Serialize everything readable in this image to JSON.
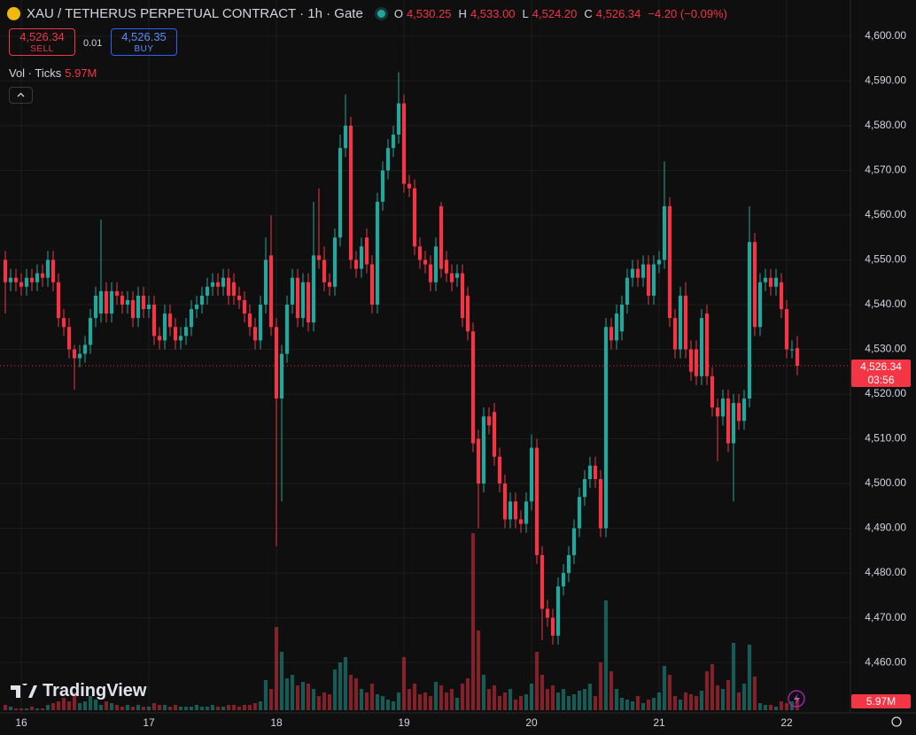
{
  "header": {
    "title": "XAU / TETHERUS PERPETUAL CONTRACT · 1h · Gate",
    "open_label": "O",
    "open": "4,530.25",
    "high_label": "H",
    "high": "4,533.00",
    "low_label": "L",
    "low": "4,524.20",
    "close_label": "C",
    "close": "4,526.34",
    "change": "−4.20 (−0.09%)"
  },
  "trade_panel": {
    "sell_price": "4,526.34",
    "sell": "SELL",
    "spread": "0.01",
    "buy_price": "4,526.35",
    "buy": "BUY"
  },
  "volume_legend": {
    "label": "Vol · Ticks",
    "value": "5.97M"
  },
  "brand": "TradingView",
  "chart_data": {
    "type": "candlestick",
    "up_color": "#26a69a",
    "down_color": "#f23645",
    "open": [
      4550,
      4545,
      4546,
      4545,
      4544,
      4546,
      4545,
      4547,
      4546,
      4550,
      4545,
      4537,
      4535,
      4530,
      4528,
      4529,
      4531,
      4537,
      4538,
      4543,
      4538,
      4543,
      4542,
      4540,
      4541,
      4537,
      4542,
      4539,
      4540,
      4533,
      4532,
      4538,
      4535,
      4532,
      4533,
      4535,
      4539,
      4540,
      4542,
      4544,
      4545,
      4544,
      4546,
      4545,
      4542,
      4541,
      4538,
      4535,
      4532,
      4540,
      4551,
      4535,
      4519,
      4529,
      4540,
      4546,
      4537,
      4545,
      4536,
      4551,
      4550,
      4545,
      4544,
      4555,
      4575,
      4580,
      4550,
      4548,
      4555,
      4549,
      4540,
      4563,
      4570,
      4575,
      4578,
      4585,
      4567,
      4566,
      4553,
      4550,
      4549,
      4545,
      4562,
      4550,
      4547,
      4546,
      4547,
      4542,
      4534,
      4510,
      4500,
      4515,
      4516,
      4506,
      4500,
      4492,
      4496,
      4492,
      4491,
      4496,
      4508,
      4484,
      4472,
      4470,
      4466,
      4477,
      4480,
      4484,
      4490,
      4497,
      4501,
      4504,
      4501,
      4490,
      4535,
      4532,
      4534,
      4540,
      4546,
      4548,
      4546,
      4549,
      4542,
      4549,
      4550,
      4562,
      4537,
      4530,
      4542,
      4530,
      4530,
      4524,
      4538,
      4524,
      4517,
      4515,
      4519,
      4509,
      4518,
      4514,
      4519,
      4554,
      4535,
      4545,
      4546,
      4544,
      4545,
      4539,
      4530,
      4530.25
    ],
    "high": [
      4552,
      4548,
      4548,
      4547,
      4548,
      4548,
      4549,
      4549,
      4552,
      4552,
      4547,
      4539,
      4537,
      4531,
      4531,
      4533,
      4539,
      4544,
      4559,
      4545,
      4545,
      4545,
      4543,
      4543,
      4543,
      4544,
      4544,
      4542,
      4542,
      4535,
      4540,
      4540,
      4537,
      4535,
      4537,
      4541,
      4542,
      4544,
      4546,
      4547,
      4547,
      4548,
      4548,
      4547,
      4544,
      4543,
      4540,
      4537,
      4542,
      4555,
      4560,
      4537,
      4531,
      4542,
      4548,
      4548,
      4547,
      4547,
      4563,
      4566,
      4553,
      4547,
      4557,
      4578,
      4587,
      4582,
      4552,
      4555,
      4557,
      4551,
      4565,
      4572,
      4577,
      4580,
      4592,
      4587,
      4569,
      4568,
      4555,
      4552,
      4551,
      4555,
      4563,
      4552,
      4549,
      4549,
      4549,
      4544,
      4536,
      4512,
      4517,
      4517,
      4518,
      4508,
      4502,
      4498,
      4498,
      4494,
      4498,
      4511,
      4510,
      4486,
      4474,
      4472,
      4479,
      4482,
      4486,
      4492,
      4499,
      4503,
      4506,
      4506,
      4503,
      4537,
      4537,
      4540,
      4542,
      4548,
      4550,
      4550,
      4551,
      4551,
      4551,
      4552,
      4572,
      4564,
      4539,
      4544,
      4545,
      4532,
      4532,
      4539,
      4540,
      4526,
      4519,
      4521,
      4521,
      4520,
      4520,
      4521,
      4562,
      4556,
      4547,
      4548,
      4548,
      4548,
      4547,
      4541,
      4532,
      4533
    ],
    "low": [
      4538,
      4543,
      4543,
      4542,
      4542,
      4543,
      4543,
      4544,
      4544,
      4543,
      4535,
      4533,
      4528,
      4521,
      4526,
      4527,
      4529,
      4535,
      4536,
      4536,
      4536,
      4540,
      4538,
      4538,
      4535,
      4535,
      4537,
      4537,
      4531,
      4530,
      4530,
      4533,
      4530,
      4530,
      4531,
      4533,
      4537,
      4538,
      4540,
      4542,
      4542,
      4542,
      4540,
      4540,
      4539,
      4536,
      4533,
      4530,
      4530,
      4538,
      4533,
      4486,
      4496,
      4527,
      4538,
      4535,
      4535,
      4534,
      4534,
      4548,
      4543,
      4542,
      4542,
      4553,
      4573,
      4548,
      4546,
      4546,
      4547,
      4538,
      4538,
      4561,
      4568,
      4573,
      4576,
      4565,
      4564,
      4551,
      4548,
      4547,
      4543,
      4543,
      4546,
      4545,
      4543,
      4544,
      4535,
      4532,
      4507,
      4490,
      4498,
      4511,
      4504,
      4498,
      4490,
      4490,
      4490,
      4489,
      4489,
      4494,
      4482,
      4465,
      4468,
      4464,
      4464,
      4475,
      4478,
      4482,
      4488,
      4495,
      4499,
      4499,
      4488,
      4488,
      4530,
      4530,
      4532,
      4538,
      4544,
      4544,
      4544,
      4540,
      4540,
      4547,
      4548,
      4535,
      4528,
      4528,
      4528,
      4523,
      4522,
      4522,
      4522,
      4515,
      4505,
      4513,
      4507,
      4496,
      4512,
      4512,
      4517,
      4533,
      4533,
      4543,
      4542,
      4542,
      4537,
      4528,
      4528,
      4524.2
    ],
    "close": [
      4545,
      4546,
      4545,
      4544,
      4546,
      4545,
      4547,
      4546,
      4550,
      4545,
      4537,
      4535,
      4530,
      4528,
      4529,
      4531,
      4537,
      4542,
      4543,
      4538,
      4543,
      4542,
      4540,
      4541,
      4537,
      4542,
      4539,
      4540,
      4533,
      4532,
      4538,
      4535,
      4532,
      4533,
      4535,
      4539,
      4540,
      4542,
      4544,
      4545,
      4544,
      4546,
      4542,
      4542,
      4541,
      4538,
      4535,
      4532,
      4540,
      4550,
      4535,
      4519,
      4529,
      4540,
      4546,
      4537,
      4545,
      4536,
      4551,
      4550,
      4545,
      4544,
      4555,
      4575,
      4580,
      4550,
      4548,
      4553,
      4549,
      4540,
      4563,
      4570,
      4575,
      4578,
      4585,
      4567,
      4566,
      4553,
      4550,
      4549,
      4545,
      4553,
      4548,
      4547,
      4545,
      4547,
      4537,
      4534,
      4509,
      4500,
      4515,
      4513,
      4506,
      4500,
      4492,
      4496,
      4492,
      4491,
      4496,
      4508,
      4484,
      4472,
      4470,
      4466,
      4477,
      4480,
      4484,
      4490,
      4497,
      4501,
      4504,
      4501,
      4490,
      4535,
      4532,
      4538,
      4540,
      4546,
      4548,
      4546,
      4549,
      4542,
      4549,
      4550,
      4562,
      4537,
      4530,
      4542,
      4530,
      4525,
      4524,
      4537,
      4524,
      4517,
      4515,
      4519,
      4509,
      4518,
      4514,
      4519,
      4554,
      4535,
      4545,
      4546,
      4544,
      4546,
      4539,
      4530,
      4530,
      4526.34
    ],
    "volume": [
      3,
      2,
      1,
      1,
      1,
      2,
      1,
      1,
      3,
      4,
      5,
      7,
      5,
      10,
      4,
      5,
      8,
      6,
      3,
      5,
      4,
      3,
      2,
      3,
      2,
      3,
      2,
      2,
      4,
      3,
      3,
      2,
      3,
      2,
      2,
      2,
      3,
      2,
      2,
      3,
      2,
      2,
      3,
      3,
      2,
      3,
      3,
      4,
      5,
      17,
      12,
      47,
      33,
      18,
      20,
      14,
      16,
      15,
      12,
      8,
      10,
      9,
      23,
      27,
      30,
      20,
      18,
      12,
      10,
      15,
      9,
      8,
      6,
      5,
      10,
      30,
      12,
      15,
      9,
      10,
      8,
      16,
      14,
      10,
      12,
      7,
      15,
      18,
      100,
      45,
      20,
      12,
      14,
      8,
      10,
      12,
      6,
      8,
      9,
      15,
      33,
      20,
      12,
      14,
      10,
      12,
      8,
      9,
      11,
      12,
      15,
      8,
      27,
      62,
      22,
      12,
      7,
      6,
      5,
      8,
      4,
      6,
      7,
      10,
      25,
      20,
      8,
      6,
      10,
      9,
      8,
      11,
      22,
      26,
      14,
      12,
      17,
      38,
      10,
      15,
      37,
      19,
      4,
      3,
      3,
      2,
      5,
      4,
      5,
      5.97
    ],
    "volume_ylim": [
      0,
      120
    ],
    "last_price": 4526.34,
    "last_price_label": "4,526.34",
    "countdown": "03:56",
    "last_volume_label": "5.97M",
    "xlim": [
      -1,
      159
    ],
    "xticks": [
      {
        "value": 3,
        "label": "16"
      },
      {
        "value": 27,
        "label": "17"
      },
      {
        "value": 51,
        "label": "18"
      },
      {
        "value": 75,
        "label": "19"
      },
      {
        "value": 99,
        "label": "20"
      },
      {
        "value": 123,
        "label": "21"
      },
      {
        "value": 147,
        "label": "22"
      }
    ],
    "ylim": [
      4452.1,
      4608.1
    ],
    "yticks": [
      {
        "value": 4460,
        "label": "4,460.00"
      },
      {
        "value": 4470,
        "label": "4,470.00"
      },
      {
        "value": 4480,
        "label": "4,480.00"
      },
      {
        "value": 4490,
        "label": "4,490.00"
      },
      {
        "value": 4500,
        "label": "4,500.00"
      },
      {
        "value": 4510,
        "label": "4,510.00"
      },
      {
        "value": 4520,
        "label": "4,520.00"
      },
      {
        "value": 4530,
        "label": "4,530.00"
      },
      {
        "value": 4540,
        "label": "4,540.00"
      },
      {
        "value": 4550,
        "label": "4,550.00"
      },
      {
        "value": 4560,
        "label": "4,560.00"
      },
      {
        "value": 4570,
        "label": "4,570.00"
      },
      {
        "value": 4580,
        "label": "4,580.00"
      },
      {
        "value": 4590,
        "label": "4,590.00"
      },
      {
        "value": 4600,
        "label": "4,600.00"
      }
    ],
    "grid": true
  }
}
